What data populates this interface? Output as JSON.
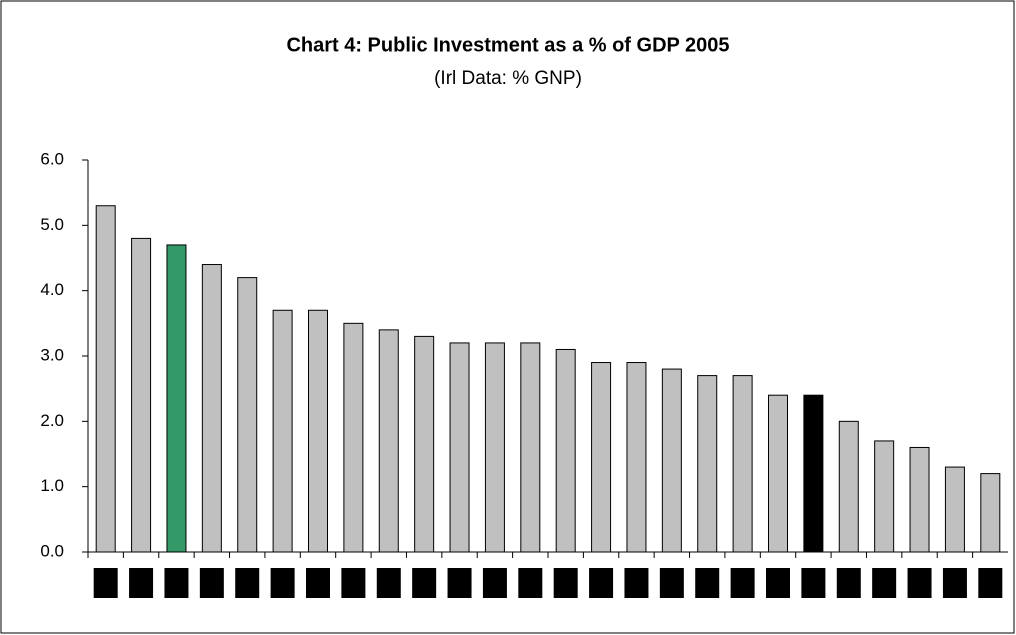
{
  "chart_data": {
    "type": "bar",
    "title": "Chart 4: Public Investment as a % of GDP 2005",
    "subtitle": "(Irl Data: % GNP)",
    "categories": [
      null,
      null,
      null,
      null,
      null,
      null,
      null,
      null,
      null,
      null,
      null,
      null,
      null,
      null,
      null,
      null,
      null,
      null,
      null,
      null,
      null,
      null,
      null,
      null,
      null,
      null
    ],
    "values": [
      5.3,
      4.8,
      4.7,
      4.4,
      4.2,
      3.7,
      3.7,
      3.5,
      3.4,
      3.3,
      3.2,
      3.2,
      3.2,
      3.1,
      2.9,
      2.9,
      2.8,
      2.7,
      2.7,
      2.4,
      2.4,
      2.0,
      1.7,
      1.6,
      1.3,
      1.2
    ],
    "colors": [
      "#c0c0c0",
      "#c0c0c0",
      "#339966",
      "#c0c0c0",
      "#c0c0c0",
      "#c0c0c0",
      "#c0c0c0",
      "#c0c0c0",
      "#c0c0c0",
      "#c0c0c0",
      "#c0c0c0",
      "#c0c0c0",
      "#c0c0c0",
      "#c0c0c0",
      "#c0c0c0",
      "#c0c0c0",
      "#c0c0c0",
      "#c0c0c0",
      "#c0c0c0",
      "#c0c0c0",
      "#000000",
      "#c0c0c0",
      "#c0c0c0",
      "#c0c0c0",
      "#c0c0c0",
      "#c0c0c0"
    ],
    "ylim": [
      0,
      6
    ],
    "yticks": [
      {
        "value": 0,
        "label": "0.0"
      },
      {
        "value": 1,
        "label": "1.0"
      },
      {
        "value": 2,
        "label": "2.0"
      },
      {
        "value": 3,
        "label": "3.0"
      },
      {
        "value": 4,
        "label": "4.0"
      },
      {
        "value": 5,
        "label": "5.0"
      },
      {
        "value": 6,
        "label": "6.0"
      }
    ],
    "grid": false
  }
}
